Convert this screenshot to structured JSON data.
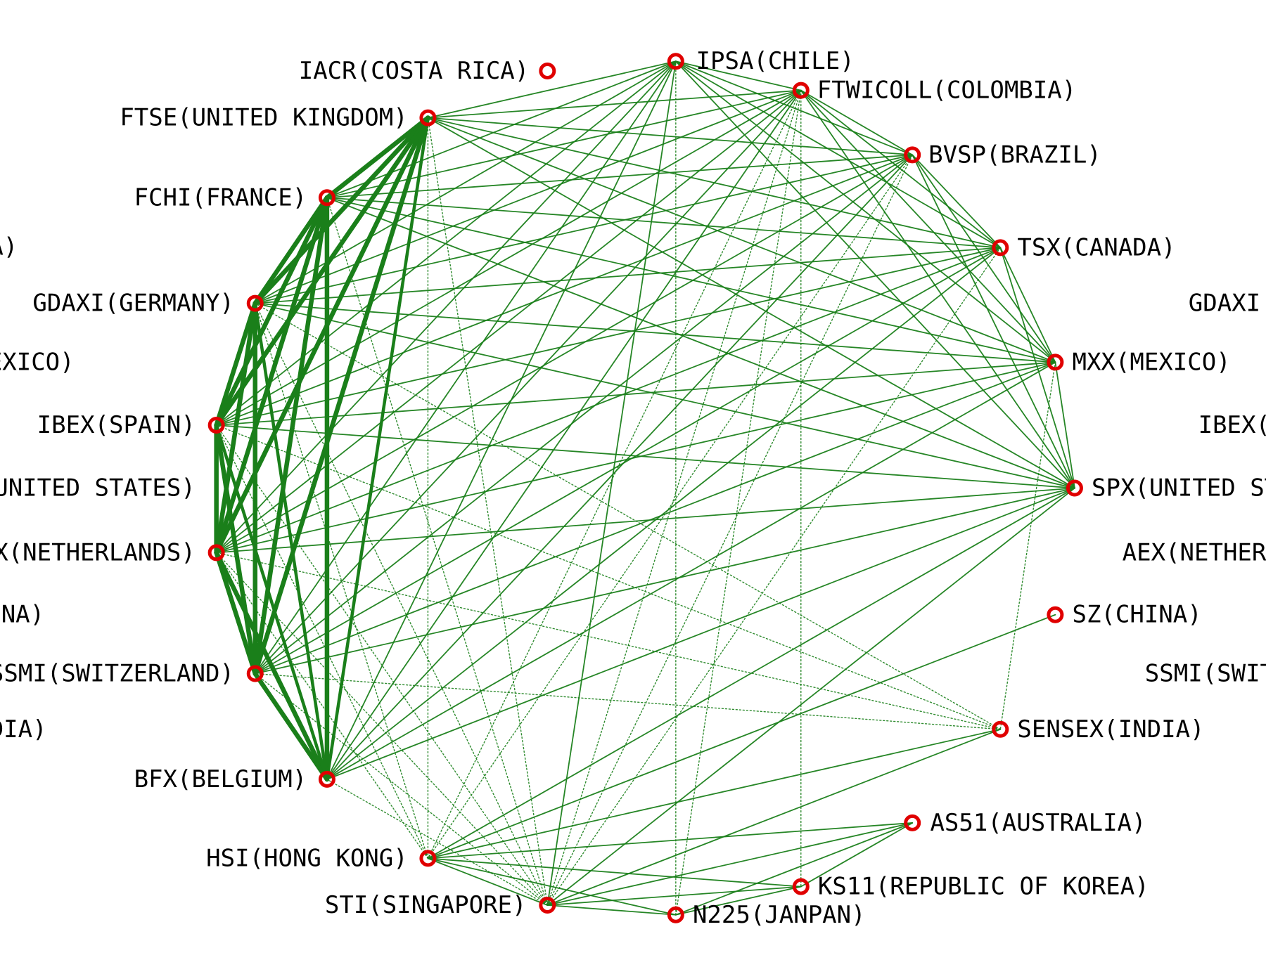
{
  "colors": {
    "edge": "#1a7f1a",
    "node": "#e00000",
    "background": "#ffffff",
    "label": "#000000"
  },
  "nodes": [
    {
      "id": "iacr",
      "label": "IACR(COSTA RICA)"
    },
    {
      "id": "ipsa",
      "label": "IPSA(CHILE)"
    },
    {
      "id": "ftwicoll",
      "label": "FTWICOLL(COLOMBIA)"
    },
    {
      "id": "bvsp",
      "label": "BVSP(BRAZIL)"
    },
    {
      "id": "tsx",
      "label": "TSX(CANADA)"
    },
    {
      "id": "mxx",
      "label": "MXX(MEXICO)"
    },
    {
      "id": "spx",
      "label": "SPX(UNITED STATES)"
    },
    {
      "id": "sz",
      "label": "SZ(CHINA)"
    },
    {
      "id": "sensex",
      "label": "SENSEX(INDIA)"
    },
    {
      "id": "as51",
      "label": "AS51(AUSTRALIA)"
    },
    {
      "id": "ks11",
      "label": "KS11(REPUBLIC OF KOREA)"
    },
    {
      "id": "n225",
      "label": "N225(JANPAN)"
    },
    {
      "id": "sti",
      "label": "STI(SINGAPORE)"
    },
    {
      "id": "hsi",
      "label": "HSI(HONG KONG)"
    },
    {
      "id": "bfx",
      "label": "BFX(BELGIUM)"
    },
    {
      "id": "ssmi",
      "label": "SSMI(SWITZERLAND)"
    },
    {
      "id": "aex",
      "label": "AEX(NETHERLANDS)"
    },
    {
      "id": "ibex",
      "label": "IBEX(SPAIN)"
    },
    {
      "id": "gdaxi",
      "label": "GDAXI(GERMANY)"
    },
    {
      "id": "fchi",
      "label": "FCHI(FRANCE)"
    },
    {
      "id": "ftse",
      "label": "FTSE(UNITED KINGDOM)"
    }
  ],
  "ghost_labels": [
    {
      "ref": "ghost-left-1",
      "label": "A)"
    },
    {
      "ref": "ghost-left-2",
      "label": "EXICO)"
    },
    {
      "ref": "ghost-left-3",
      "label": "UNITED STATES)"
    },
    {
      "ref": "ghost-left-4",
      "label": "NA)"
    },
    {
      "ref": "ghost-left-5",
      "label": "DIA)"
    },
    {
      "ref": "ghost-right-1",
      "label": "GDAXI"
    },
    {
      "ref": "ghost-right-2",
      "label": "IBEX("
    },
    {
      "ref": "ghost-right-3",
      "label": "AEX(NETHER"
    },
    {
      "ref": "ghost-right-4",
      "label": "SSMI(SWIT"
    }
  ],
  "edges": [
    {
      "s": "ftse",
      "t": "fchi",
      "w": "heavy"
    },
    {
      "s": "ftse",
      "t": "gdaxi",
      "w": "heavy"
    },
    {
      "s": "ftse",
      "t": "ibex",
      "w": "heavy"
    },
    {
      "s": "ftse",
      "t": "aex",
      "w": "heavy"
    },
    {
      "s": "ftse",
      "t": "ssmi",
      "w": "heavy"
    },
    {
      "s": "fchi",
      "t": "gdaxi",
      "w": "heavy"
    },
    {
      "s": "fchi",
      "t": "ibex",
      "w": "heavy"
    },
    {
      "s": "fchi",
      "t": "aex",
      "w": "heavy"
    },
    {
      "s": "fchi",
      "t": "ssmi",
      "w": "heavy"
    },
    {
      "s": "fchi",
      "t": "bfx",
      "w": "heavy"
    },
    {
      "s": "gdaxi",
      "t": "ibex",
      "w": "heavy"
    },
    {
      "s": "gdaxi",
      "t": "aex",
      "w": "heavy"
    },
    {
      "s": "gdaxi",
      "t": "ssmi",
      "w": "heavy"
    },
    {
      "s": "ibex",
      "t": "aex",
      "w": "heavy"
    },
    {
      "s": "ibex",
      "t": "ssmi",
      "w": "heavy"
    },
    {
      "s": "aex",
      "t": "ssmi",
      "w": "heavy"
    },
    {
      "s": "aex",
      "t": "bfx",
      "w": "heavy"
    },
    {
      "s": "ssmi",
      "t": "bfx",
      "w": "heavy"
    },
    {
      "s": "ftse",
      "t": "bfx",
      "w": "medium"
    },
    {
      "s": "gdaxi",
      "t": "bfx",
      "w": "medium"
    },
    {
      "s": "ibex",
      "t": "bfx",
      "w": "medium"
    },
    {
      "s": "ipsa",
      "t": "ftse",
      "w": "thin"
    },
    {
      "s": "ipsa",
      "t": "fchi",
      "w": "thin"
    },
    {
      "s": "ipsa",
      "t": "gdaxi",
      "w": "thin"
    },
    {
      "s": "ipsa",
      "t": "ibex",
      "w": "thin"
    },
    {
      "s": "ipsa",
      "t": "aex",
      "w": "thin"
    },
    {
      "s": "ipsa",
      "t": "ssmi",
      "w": "thin"
    },
    {
      "s": "ipsa",
      "t": "bfx",
      "w": "thin"
    },
    {
      "s": "ipsa",
      "t": "ftwicoll",
      "w": "thin"
    },
    {
      "s": "ipsa",
      "t": "bvsp",
      "w": "thin"
    },
    {
      "s": "ipsa",
      "t": "tsx",
      "w": "thin"
    },
    {
      "s": "ipsa",
      "t": "mxx",
      "w": "thin"
    },
    {
      "s": "ipsa",
      "t": "spx",
      "w": "thin"
    },
    {
      "s": "ipsa",
      "t": "sti",
      "w": "thin"
    },
    {
      "s": "ftwicoll",
      "t": "ftse",
      "w": "thin"
    },
    {
      "s": "ftwicoll",
      "t": "fchi",
      "w": "thin"
    },
    {
      "s": "ftwicoll",
      "t": "gdaxi",
      "w": "thin"
    },
    {
      "s": "ftwicoll",
      "t": "ibex",
      "w": "thin"
    },
    {
      "s": "ftwicoll",
      "t": "aex",
      "w": "thin"
    },
    {
      "s": "ftwicoll",
      "t": "ssmi",
      "w": "thin"
    },
    {
      "s": "ftwicoll",
      "t": "bfx",
      "w": "thin"
    },
    {
      "s": "ftwicoll",
      "t": "bvsp",
      "w": "thin"
    },
    {
      "s": "ftwicoll",
      "t": "tsx",
      "w": "thin"
    },
    {
      "s": "ftwicoll",
      "t": "mxx",
      "w": "thin"
    },
    {
      "s": "ftwicoll",
      "t": "spx",
      "w": "thin"
    },
    {
      "s": "ftwicoll",
      "t": "sti",
      "w": "dotted"
    },
    {
      "s": "ftwicoll",
      "t": "n225",
      "w": "dotted"
    },
    {
      "s": "ftwicoll",
      "t": "ks11",
      "w": "dotted"
    },
    {
      "s": "ftwicoll",
      "t": "hsi",
      "w": "dotted"
    },
    {
      "s": "bvsp",
      "t": "ftse",
      "w": "thin"
    },
    {
      "s": "bvsp",
      "t": "fchi",
      "w": "thin"
    },
    {
      "s": "bvsp",
      "t": "gdaxi",
      "w": "thin"
    },
    {
      "s": "bvsp",
      "t": "ibex",
      "w": "thin"
    },
    {
      "s": "bvsp",
      "t": "aex",
      "w": "thin"
    },
    {
      "s": "bvsp",
      "t": "ssmi",
      "w": "thin"
    },
    {
      "s": "bvsp",
      "t": "bfx",
      "w": "thin"
    },
    {
      "s": "bvsp",
      "t": "tsx",
      "w": "thin"
    },
    {
      "s": "bvsp",
      "t": "mxx",
      "w": "thin"
    },
    {
      "s": "bvsp",
      "t": "spx",
      "w": "thin"
    },
    {
      "s": "bvsp",
      "t": "sti",
      "w": "dotted"
    },
    {
      "s": "bvsp",
      "t": "hsi",
      "w": "dotted"
    },
    {
      "s": "tsx",
      "t": "ftse",
      "w": "thin"
    },
    {
      "s": "tsx",
      "t": "fchi",
      "w": "thin"
    },
    {
      "s": "tsx",
      "t": "gdaxi",
      "w": "thin"
    },
    {
      "s": "tsx",
      "t": "ibex",
      "w": "thin"
    },
    {
      "s": "tsx",
      "t": "aex",
      "w": "thin"
    },
    {
      "s": "tsx",
      "t": "ssmi",
      "w": "thin"
    },
    {
      "s": "tsx",
      "t": "bfx",
      "w": "thin"
    },
    {
      "s": "tsx",
      "t": "mxx",
      "w": "thin"
    },
    {
      "s": "tsx",
      "t": "spx",
      "w": "thin"
    },
    {
      "s": "tsx",
      "t": "sti",
      "w": "dotted"
    },
    {
      "s": "mxx",
      "t": "ftse",
      "w": "thin"
    },
    {
      "s": "mxx",
      "t": "fchi",
      "w": "thin"
    },
    {
      "s": "mxx",
      "t": "gdaxi",
      "w": "thin"
    },
    {
      "s": "mxx",
      "t": "ibex",
      "w": "thin"
    },
    {
      "s": "mxx",
      "t": "aex",
      "w": "thin"
    },
    {
      "s": "mxx",
      "t": "ssmi",
      "w": "thin"
    },
    {
      "s": "mxx",
      "t": "bfx",
      "w": "thin"
    },
    {
      "s": "mxx",
      "t": "spx",
      "w": "thin"
    },
    {
      "s": "mxx",
      "t": "sensex",
      "w": "dotted"
    },
    {
      "s": "spx",
      "t": "ftse",
      "w": "thin"
    },
    {
      "s": "spx",
      "t": "fchi",
      "w": "thin"
    },
    {
      "s": "spx",
      "t": "gdaxi",
      "w": "thin"
    },
    {
      "s": "spx",
      "t": "ibex",
      "w": "thin"
    },
    {
      "s": "spx",
      "t": "aex",
      "w": "thin"
    },
    {
      "s": "spx",
      "t": "ssmi",
      "w": "thin"
    },
    {
      "s": "spx",
      "t": "bfx",
      "w": "thin"
    },
    {
      "s": "spx",
      "t": "hsi",
      "w": "thin"
    },
    {
      "s": "spx",
      "t": "sti",
      "w": "thin"
    },
    {
      "s": "sz",
      "t": "hsi",
      "w": "thin"
    },
    {
      "s": "sensex",
      "t": "hsi",
      "w": "thin"
    },
    {
      "s": "sensex",
      "t": "sti",
      "w": "thin"
    },
    {
      "s": "sensex",
      "t": "gdaxi",
      "w": "dotted"
    },
    {
      "s": "sensex",
      "t": "ibex",
      "w": "dotted"
    },
    {
      "s": "sensex",
      "t": "aex",
      "w": "dotted"
    },
    {
      "s": "sensex",
      "t": "ssmi",
      "w": "dotted"
    },
    {
      "s": "as51",
      "t": "hsi",
      "w": "thin"
    },
    {
      "s": "as51",
      "t": "sti",
      "w": "thin"
    },
    {
      "s": "as51",
      "t": "ks11",
      "w": "thin"
    },
    {
      "s": "as51",
      "t": "n225",
      "w": "thin"
    },
    {
      "s": "ks11",
      "t": "hsi",
      "w": "thin"
    },
    {
      "s": "ks11",
      "t": "sti",
      "w": "thin"
    },
    {
      "s": "ks11",
      "t": "n225",
      "w": "thin"
    },
    {
      "s": "n225",
      "t": "hsi",
      "w": "thin"
    },
    {
      "s": "n225",
      "t": "sti",
      "w": "thin"
    },
    {
      "s": "n225",
      "t": "ipsa",
      "w": "dotted"
    },
    {
      "s": "hsi",
      "t": "sti",
      "w": "thin"
    },
    {
      "s": "hsi",
      "t": "ftse",
      "w": "dotted"
    },
    {
      "s": "hsi",
      "t": "gdaxi",
      "w": "dotted"
    },
    {
      "s": "hsi",
      "t": "ibex",
      "w": "dotted"
    },
    {
      "s": "hsi",
      "t": "aex",
      "w": "dotted"
    },
    {
      "s": "sti",
      "t": "ftse",
      "w": "dotted"
    },
    {
      "s": "sti",
      "t": "fchi",
      "w": "dotted"
    },
    {
      "s": "sti",
      "t": "gdaxi",
      "w": "dotted"
    },
    {
      "s": "sti",
      "t": "ibex",
      "w": "dotted"
    },
    {
      "s": "sti",
      "t": "aex",
      "w": "dotted"
    },
    {
      "s": "sti",
      "t": "ssmi",
      "w": "dotted"
    },
    {
      "s": "sti",
      "t": "bfx",
      "w": "dotted"
    }
  ]
}
